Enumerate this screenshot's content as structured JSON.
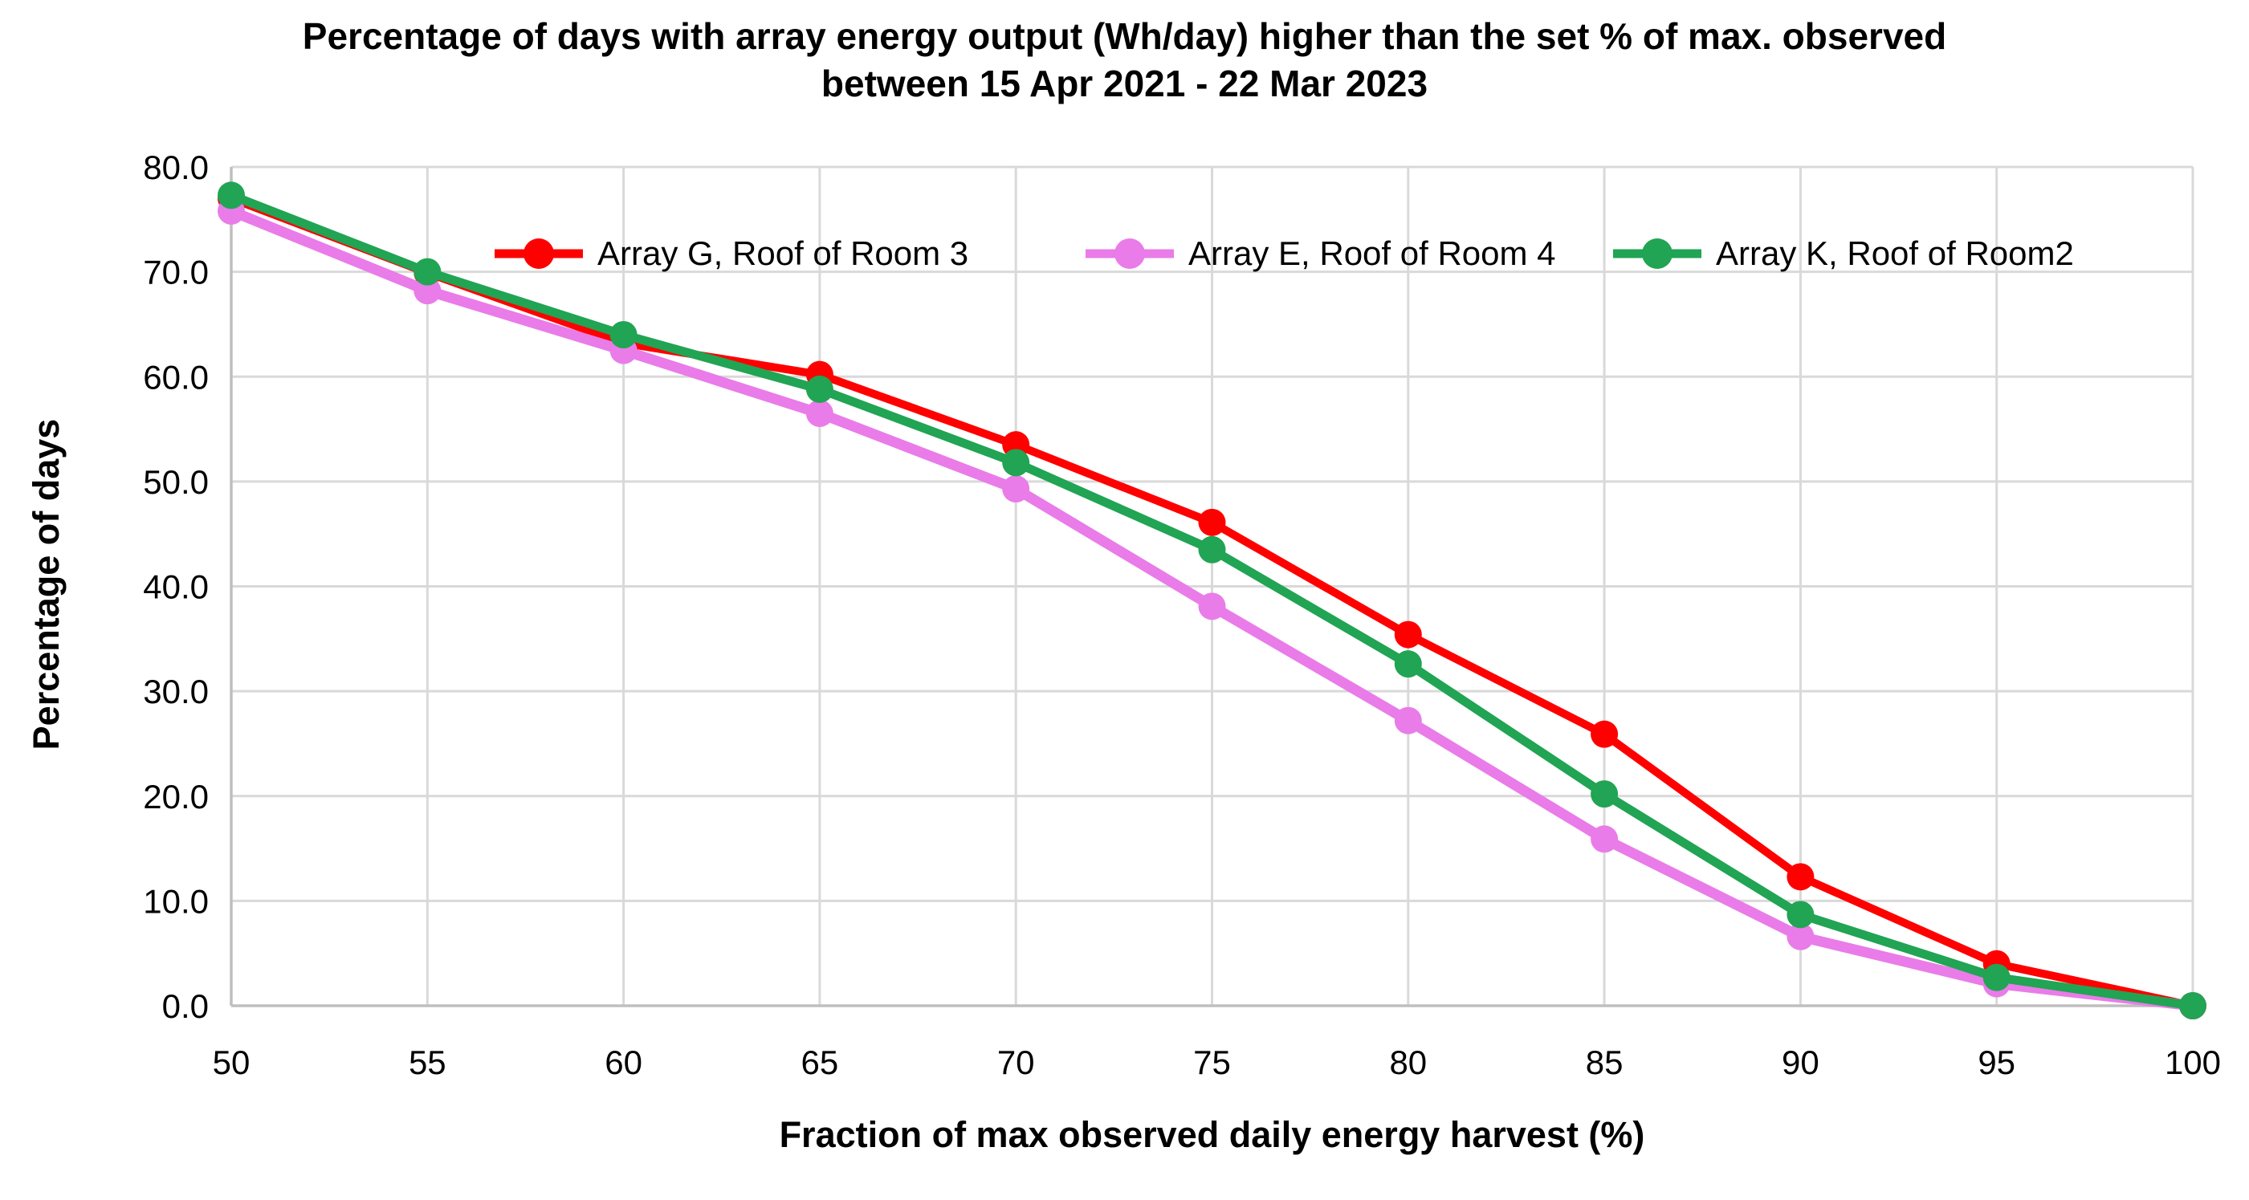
{
  "chart_data": {
    "type": "line",
    "title_lines": [
      "Percentage of days with array energy output (Wh/day) higher than the set % of max. observed",
      "between 15 Apr 2021 - 22 Mar 2023"
    ],
    "xlabel": "Fraction of max observed daily energy harvest (%)",
    "ylabel": "Percentage of days",
    "xlim": [
      50,
      100
    ],
    "ylim": [
      0,
      80
    ],
    "x_tick_step": 5,
    "y_tick_step": 10,
    "x_tick_labels": [
      "50",
      "55",
      "60",
      "65",
      "70",
      "75",
      "80",
      "85",
      "90",
      "95",
      "100"
    ],
    "y_tick_labels": [
      "0.0",
      "10.0",
      "20.0",
      "30.0",
      "40.0",
      "50.0",
      "60.0",
      "70.0",
      "80.0"
    ],
    "grid": true,
    "gridline_color": "#D9D9D9",
    "axis_line_color": "#BFBFBF",
    "legend_position": "top-inside",
    "x": [
      50,
      55,
      60,
      65,
      70,
      75,
      80,
      85,
      90,
      95,
      100
    ],
    "series": [
      {
        "name": "Array G, Roof of Room 3",
        "color": "#FE0000",
        "values": [
          77.0,
          69.9,
          63.2,
          60.2,
          53.5,
          46.1,
          35.4,
          25.9,
          12.3,
          4.0,
          0.0
        ]
      },
      {
        "name": "Array E, Roof of Room 4",
        "color": "#E97CE8",
        "values": [
          75.8,
          68.2,
          62.5,
          56.5,
          49.3,
          38.1,
          27.2,
          15.9,
          6.6,
          2.1,
          0.0
        ]
      },
      {
        "name": "Array K, Roof of Room2",
        "color": "#21A453",
        "values": [
          77.3,
          70.0,
          64.0,
          58.8,
          51.8,
          43.5,
          32.6,
          20.2,
          8.7,
          2.7,
          0.0
        ]
      }
    ]
  }
}
